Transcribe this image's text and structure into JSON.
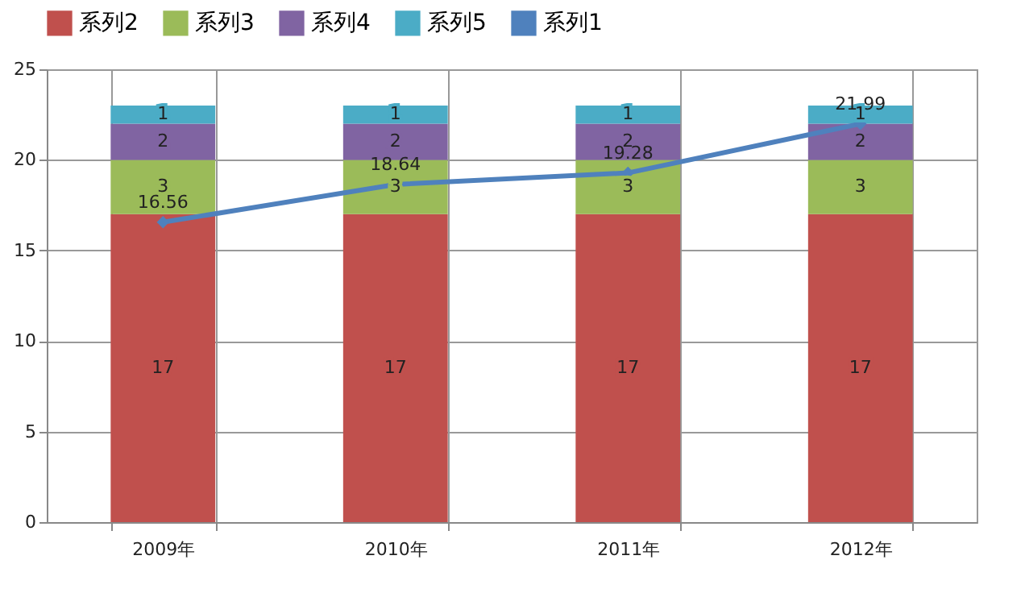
{
  "chart_data": {
    "type": "bar",
    "stacked": true,
    "categories": [
      "2009年",
      "2010年",
      "2011年",
      "2012年"
    ],
    "series": [
      {
        "name": "系列2",
        "color": "#c0504d",
        "values": [
          17,
          17,
          17,
          17
        ]
      },
      {
        "name": "系列3",
        "color": "#9bbb59",
        "values": [
          3,
          3,
          3,
          3
        ]
      },
      {
        "name": "系列4",
        "color": "#8064a2",
        "values": [
          2,
          2,
          2,
          2
        ]
      },
      {
        "name": "系列5",
        "color": "#4bacc6",
        "values": [
          1,
          1,
          1,
          1
        ]
      },
      {
        "name": "系列1",
        "type": "line",
        "color": "#4f81bd",
        "values": [
          16.56,
          18.64,
          19.28,
          21.99
        ]
      }
    ],
    "ylim": [
      0,
      25
    ],
    "yticks": [
      0,
      5,
      10,
      15,
      20,
      25
    ],
    "grid": true,
    "legend": "top",
    "marker": "diamond",
    "data_labels": true
  }
}
